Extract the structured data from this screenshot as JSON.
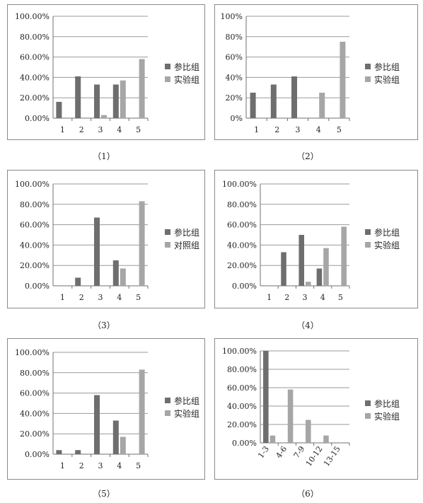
{
  "colors": {
    "series1": "#6e6e6e",
    "series2": "#a6a6a6",
    "grid": "#9a9a9a",
    "axis": "#707070"
  },
  "chart_data": [
    {
      "type": "bar",
      "caption": "（1）",
      "categories": [
        "1",
        "2",
        "3",
        "4",
        "5"
      ],
      "yticks": [
        "0.00%",
        "20.00%",
        "40.00%",
        "60.00%",
        "80.00%",
        "100.00%"
      ],
      "ylim": [
        0,
        100
      ],
      "series": [
        {
          "name": "参比组",
          "values": [
            16,
            41,
            33,
            33,
            0
          ]
        },
        {
          "name": "实验组",
          "values": [
            0,
            0,
            3,
            37,
            58
          ]
        }
      ],
      "legend_position": "right",
      "grid": true
    },
    {
      "type": "bar",
      "caption": "（2）",
      "categories": [
        "1",
        "2",
        "3",
        "4",
        "5"
      ],
      "yticks": [
        "0%",
        "20%",
        "40%",
        "60%",
        "80%",
        "100%"
      ],
      "ylim": [
        0,
        100
      ],
      "series": [
        {
          "name": "参比组",
          "values": [
            25,
            33,
            41,
            0,
            0
          ]
        },
        {
          "name": "实验组",
          "values": [
            0,
            0,
            0,
            25,
            75
          ]
        }
      ],
      "legend_position": "right",
      "grid": true
    },
    {
      "type": "bar",
      "caption": "（3）",
      "categories": [
        "1",
        "2",
        "3",
        "4",
        "5"
      ],
      "yticks": [
        "0.00%",
        "20.00%",
        "40.00%",
        "60.00%",
        "80.00%",
        "100.00%"
      ],
      "ylim": [
        0,
        100
      ],
      "series": [
        {
          "name": "参比组",
          "values": [
            0,
            8,
            67,
            25,
            0
          ]
        },
        {
          "name": "对照组",
          "values": [
            0,
            0,
            0,
            17,
            83
          ]
        }
      ],
      "legend_position": "right",
      "grid": true
    },
    {
      "type": "bar",
      "caption": "（4）",
      "categories": [
        "1",
        "2",
        "3",
        "4",
        "5"
      ],
      "yticks": [
        "0.00%",
        "20.00%",
        "40.00%",
        "60.00%",
        "80.00%",
        "100.00%"
      ],
      "ylim": [
        0,
        100
      ],
      "series": [
        {
          "name": "参比组",
          "values": [
            0,
            33,
            50,
            17,
            0
          ]
        },
        {
          "name": "实验组",
          "values": [
            0,
            0,
            4,
            37,
            58
          ]
        }
      ],
      "legend_position": "right",
      "grid": true
    },
    {
      "type": "bar",
      "caption": "（5）",
      "categories": [
        "1",
        "2",
        "3",
        "4",
        "5"
      ],
      "yticks": [
        "0.00%",
        "20.00%",
        "40.00%",
        "60.00%",
        "80.00%",
        "100.00%"
      ],
      "ylim": [
        0,
        100
      ],
      "series": [
        {
          "name": "参比组",
          "values": [
            4,
            4,
            58,
            33,
            0
          ]
        },
        {
          "name": "实验组",
          "values": [
            0,
            0,
            0,
            17,
            83
          ]
        }
      ],
      "legend_position": "right",
      "grid": true
    },
    {
      "type": "bar",
      "caption": "（6）",
      "categories": [
        "1-3",
        "4-6",
        "7-9",
        "10-12",
        "13-15"
      ],
      "rotate_xticks": true,
      "yticks": [
        "0.00%",
        "20.00%",
        "40.00%",
        "60.00%",
        "80.00%",
        "100.00%"
      ],
      "ylim": [
        0,
        100
      ],
      "series": [
        {
          "name": "参比组",
          "values": [
            100,
            0,
            0,
            0,
            0
          ]
        },
        {
          "name": "实验组",
          "values": [
            8,
            58,
            25,
            8,
            0
          ]
        }
      ],
      "legend_position": "right",
      "grid": true
    }
  ]
}
